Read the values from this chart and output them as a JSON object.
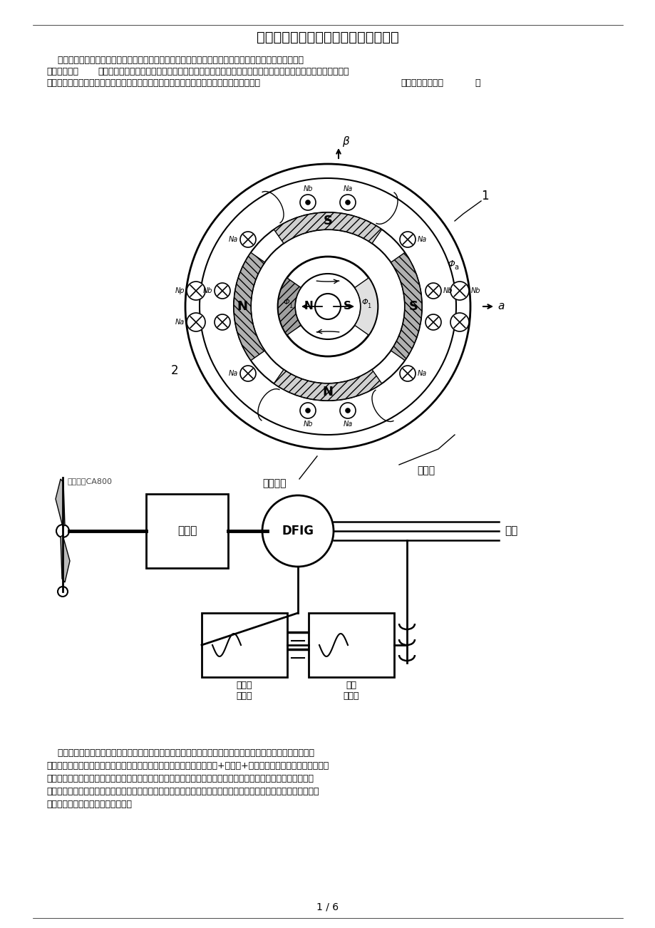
{
  "title": "风力发电机结构图分析风力发电机原理",
  "intro_line1": "    风力发电的原理，是利用风力带动风车叶片旋转，再透过增速机将旋转的速度提升，来促使发电机发电。",
  "intro_bold1": "风力",
  "intro_line2_bold": "研究报告",
  "intro_line2_normal": "显示：依据目前的风车技术，大约是每秒三公尺的微风速度（微风的程度），便可以开始发电。风力发电正",
  "intro_line3": "在世界上形成一股热潮，为风力发电没有燃料问题，也不会产生辐射或空气污染。下面先看",
  "intro_bold2": "风力发电机结构图",
  "intro_end": "。",
  "label_rotor_iron": "转子铁心",
  "label_permanent_magnet": "永磁体",
  "watermark": "版权所有CA800",
  "dfig_label": "DFIG",
  "gearbox_label": "齿轮箱",
  "grid_label": "电网",
  "rotor_converter_line1": "转子侧",
  "rotor_converter_line2": "变换器",
  "grid_converter_line1": "网侧",
  "grid_converter_line2": "变换器",
  "bottom_lines": [
    "    风力发电在芬兰、丹麦等国家很流行；我国也在西部地区大力提倡。小型风力发电系统效率很高，但它不是只",
    "由一个发电机头组成的，而是一个有一定科技含量的小系统：风力发电机+充电器+数字逆变器。风力发电机由机头、",
    "转体、尾翼、叶片组成。每一部分都很重要，各部分功能为：叶片用来接受风力并通过机头转为电能；尾翼使叶片",
    "始终对着来风的方向从而获得最大的风能；转体能使机头灵活地转动以实现尾翼调整方向的功能；机头的转子是永磁",
    "体，定子绕组切割磁力线产生电能。"
  ],
  "page_label": "1 / 6",
  "bg_color": "#ffffff"
}
